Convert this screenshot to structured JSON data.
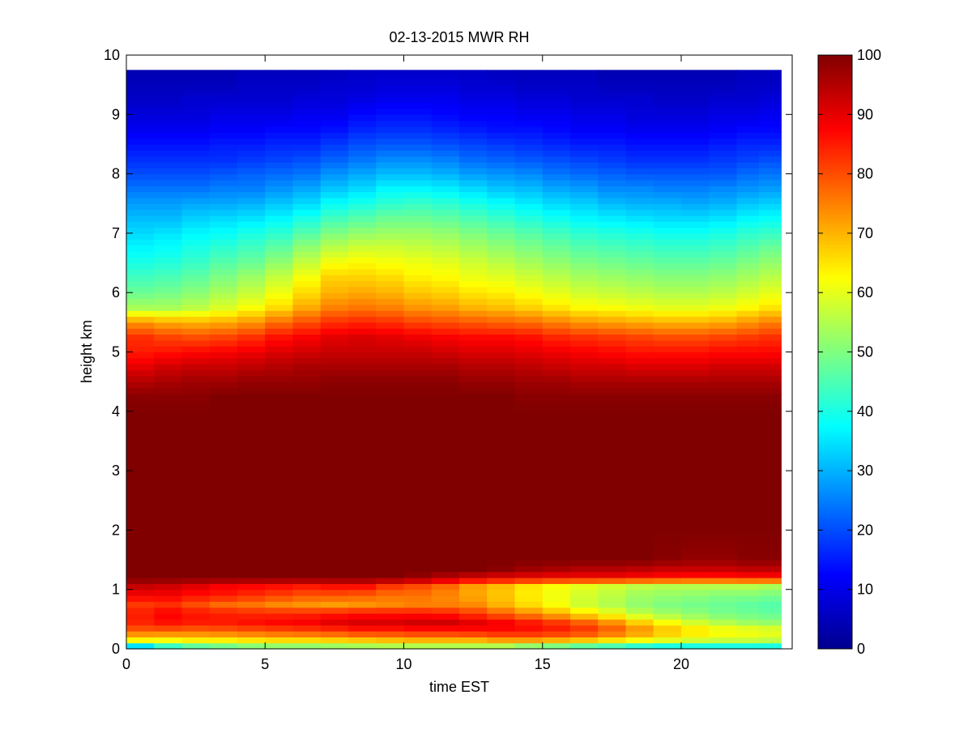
{
  "chart_data": {
    "type": "heatmap",
    "title": "02-13-2015 MWR RH",
    "xlabel": "time EST",
    "ylabel": "height km",
    "xlim": [
      0,
      23.6
    ],
    "ylim": [
      0,
      10
    ],
    "x_ticks": [
      0,
      5,
      10,
      15,
      20
    ],
    "y_ticks": [
      0,
      1,
      2,
      3,
      4,
      5,
      6,
      7,
      8,
      9,
      10
    ],
    "colorbar": {
      "range": [
        0,
        100
      ],
      "ticks": [
        0,
        10,
        20,
        30,
        40,
        50,
        60,
        70,
        80,
        90,
        100
      ],
      "colormap": "jet"
    },
    "grid": false,
    "x": [
      0.5,
      1.5,
      2.5,
      3.5,
      4.5,
      5.5,
      6.5,
      7.5,
      8.5,
      9.5,
      10.5,
      11.5,
      12.5,
      13.5,
      14.5,
      15.5,
      16.5,
      17.5,
      18.5,
      19.5,
      20.5,
      21.5,
      22.5,
      23.1
    ],
    "profile_heights": [
      0.05,
      0.15,
      0.3,
      0.45,
      0.6,
      0.75,
      0.9,
      1.05,
      1.2,
      1.35,
      1.5,
      2.0,
      2.5,
      3.0,
      3.5,
      4.0,
      4.25,
      4.5,
      4.75,
      5.0,
      5.25,
      5.5,
      5.75,
      6.0,
      6.25,
      6.5,
      6.75,
      7.0,
      7.25,
      7.5,
      7.75,
      8.0,
      8.25,
      8.5,
      8.75,
      9.0,
      9.25,
      9.5,
      9.75
    ],
    "rh_profiles": [
      [
        35,
        63,
        78,
        84,
        85,
        82,
        88,
        93,
        100,
        100,
        100,
        100,
        100,
        100,
        100,
        100,
        99,
        95,
        90,
        85,
        83,
        73,
        54,
        48,
        44,
        40,
        37,
        34,
        31,
        28,
        24,
        20,
        17,
        14,
        11,
        9,
        7,
        6,
        5
      ],
      [
        43,
        62,
        78,
        86,
        88,
        83,
        88,
        92,
        100,
        100,
        100,
        100,
        100,
        100,
        100,
        100,
        99,
        96,
        92,
        86,
        81,
        71,
        54,
        49,
        45,
        41,
        38,
        35,
        31,
        28,
        24,
        20,
        17,
        14,
        11,
        9,
        7,
        6,
        5
      ],
      [
        47,
        64,
        77,
        85,
        86,
        80,
        86,
        90,
        100,
        100,
        100,
        100,
        100,
        100,
        100,
        100,
        99,
        97,
        93,
        87,
        80,
        70,
        56,
        51,
        47,
        43,
        40,
        37,
        33,
        29,
        24,
        20,
        17,
        14,
        11,
        9,
        8,
        6,
        5
      ],
      [
        49,
        64,
        78,
        85,
        85,
        77,
        85,
        88,
        100,
        100,
        100,
        100,
        100,
        100,
        100,
        100,
        100,
        97,
        93,
        88,
        81,
        71,
        59,
        54,
        50,
        46,
        42,
        38,
        34,
        29,
        25,
        21,
        17,
        15,
        12,
        10,
        8,
        6,
        5
      ],
      [
        51,
        65,
        79,
        86,
        84,
        76,
        83,
        87,
        100,
        100,
        100,
        100,
        100,
        100,
        100,
        100,
        100,
        98,
        94,
        89,
        83,
        73,
        62,
        57,
        53,
        48,
        44,
        40,
        35,
        30,
        25,
        22,
        18,
        15,
        12,
        10,
        8,
        7,
        6
      ],
      [
        52,
        66,
        80,
        87,
        84,
        74,
        81,
        86,
        100,
        100,
        100,
        100,
        100,
        100,
        100,
        100,
        100,
        98,
        95,
        91,
        86,
        77,
        66,
        61,
        57,
        52,
        47,
        42,
        37,
        32,
        27,
        23,
        19,
        16,
        13,
        10,
        8,
        7,
        6
      ],
      [
        52,
        66,
        81,
        88,
        84,
        73,
        79,
        85,
        100,
        100,
        100,
        100,
        100,
        100,
        100,
        100,
        100,
        98,
        96,
        92,
        88,
        80,
        71,
        66,
        62,
        57,
        52,
        46,
        40,
        34,
        29,
        24,
        20,
        16,
        13,
        11,
        9,
        7,
        6
      ],
      [
        53,
        67,
        82,
        90,
        85,
        72,
        79,
        86,
        100,
        100,
        100,
        100,
        100,
        100,
        100,
        100,
        100,
        99,
        96,
        93,
        90,
        83,
        75,
        70,
        67,
        62,
        56,
        50,
        44,
        38,
        32,
        27,
        22,
        18,
        14,
        11,
        9,
        8,
        6
      ],
      [
        54,
        68,
        84,
        91,
        86,
        73,
        78,
        86,
        100,
        100,
        100,
        100,
        100,
        100,
        100,
        100,
        100,
        99,
        96,
        93,
        91,
        84,
        76,
        71,
        67,
        63,
        58,
        52,
        46,
        40,
        34,
        29,
        24,
        20,
        16,
        13,
        10,
        8,
        7
      ],
      [
        55,
        69,
        84,
        91,
        86,
        74,
        76,
        82,
        100,
        100,
        100,
        100,
        100,
        100,
        100,
        100,
        100,
        99,
        96,
        93,
        90,
        83,
        75,
        70,
        66,
        62,
        58,
        53,
        48,
        42,
        37,
        31,
        26,
        21,
        17,
        14,
        11,
        9,
        7
      ],
      [
        55,
        70,
        85,
        92,
        86,
        75,
        76,
        80,
        98,
        100,
        100,
        100,
        100,
        100,
        100,
        100,
        100,
        99,
        96,
        93,
        89,
        81,
        73,
        68,
        64,
        61,
        57,
        53,
        48,
        43,
        37,
        31,
        26,
        21,
        17,
        14,
        11,
        9,
        7
      ],
      [
        55,
        70,
        85,
        92,
        85,
        75,
        74,
        77,
        95,
        100,
        100,
        100,
        100,
        100,
        100,
        100,
        100,
        99,
        96,
        92,
        88,
        80,
        72,
        67,
        63,
        60,
        56,
        52,
        47,
        42,
        36,
        30,
        25,
        20,
        16,
        13,
        11,
        9,
        7
      ],
      [
        55,
        70,
        86,
        90,
        82,
        74,
        71,
        72,
        92,
        100,
        100,
        100,
        100,
        100,
        100,
        100,
        100,
        98,
        95,
        91,
        87,
        79,
        70,
        65,
        61,
        58,
        54,
        50,
        45,
        40,
        34,
        28,
        23,
        19,
        15,
        12,
        10,
        8,
        7
      ],
      [
        55,
        72,
        87,
        88,
        78,
        70,
        68,
        69,
        90,
        99,
        100,
        100,
        100,
        100,
        100,
        100,
        100,
        98,
        95,
        91,
        87,
        78,
        69,
        64,
        60,
        56,
        52,
        48,
        43,
        38,
        32,
        27,
        22,
        18,
        14,
        12,
        10,
        8,
        6
      ],
      [
        52,
        72,
        87,
        85,
        74,
        66,
        64,
        65,
        89,
        97,
        100,
        100,
        100,
        100,
        100,
        100,
        99,
        97,
        94,
        90,
        86,
        77,
        67,
        62,
        58,
        54,
        50,
        46,
        41,
        36,
        31,
        26,
        21,
        17,
        14,
        11,
        9,
        7,
        6
      ],
      [
        50,
        70,
        86,
        82,
        70,
        62,
        61,
        62,
        88,
        96,
        100,
        100,
        100,
        100,
        100,
        100,
        99,
        97,
        93,
        89,
        84,
        75,
        65,
        60,
        56,
        52,
        48,
        44,
        39,
        34,
        29,
        24,
        20,
        16,
        13,
        11,
        9,
        7,
        6
      ],
      [
        47,
        68,
        84,
        78,
        65,
        58,
        58,
        60,
        88,
        95,
        100,
        100,
        100,
        100,
        100,
        100,
        99,
        96,
        92,
        88,
        83,
        73,
        63,
        58,
        54,
        50,
        46,
        42,
        37,
        33,
        28,
        23,
        19,
        15,
        12,
        10,
        8,
        7,
        6
      ],
      [
        45,
        65,
        80,
        73,
        61,
        55,
        56,
        58,
        88,
        95,
        100,
        100,
        100,
        100,
        100,
        100,
        99,
        96,
        92,
        87,
        82,
        72,
        62,
        57,
        53,
        49,
        45,
        41,
        36,
        31,
        26,
        22,
        18,
        15,
        12,
        10,
        8,
        6,
        5
      ],
      [
        42,
        62,
        75,
        67,
        56,
        52,
        53,
        56,
        87,
        94,
        100,
        100,
        100,
        100,
        100,
        100,
        99,
        96,
        91,
        86,
        81,
        71,
        61,
        56,
        52,
        48,
        44,
        40,
        35,
        30,
        26,
        21,
        17,
        14,
        11,
        9,
        8,
        6,
        5
      ],
      [
        40,
        60,
        70,
        62,
        53,
        50,
        52,
        55,
        86,
        93,
        99,
        100,
        100,
        100,
        100,
        100,
        99,
        96,
        91,
        86,
        80,
        70,
        60,
        55,
        51,
        47,
        43,
        39,
        34,
        30,
        25,
        21,
        17,
        14,
        11,
        9,
        7,
        6,
        5
      ],
      [
        40,
        58,
        67,
        58,
        51,
        49,
        51,
        55,
        85,
        93,
        98,
        100,
        100,
        100,
        100,
        100,
        99,
        96,
        91,
        86,
        80,
        70,
        60,
        55,
        51,
        47,
        43,
        39,
        34,
        29,
        25,
        21,
        17,
        14,
        11,
        9,
        7,
        6,
        5
      ],
      [
        40,
        57,
        64,
        55,
        49,
        48,
        50,
        55,
        85,
        93,
        98,
        100,
        100,
        100,
        100,
        100,
        99,
        96,
        92,
        87,
        81,
        71,
        61,
        56,
        52,
        48,
        44,
        40,
        35,
        30,
        26,
        21,
        18,
        15,
        12,
        10,
        8,
        6,
        5
      ],
      [
        40,
        57,
        63,
        53,
        48,
        47,
        50,
        55,
        86,
        94,
        99,
        100,
        100,
        100,
        100,
        100,
        99,
        96,
        92,
        87,
        82,
        73,
        63,
        58,
        54,
        50,
        46,
        42,
        37,
        32,
        27,
        23,
        19,
        16,
        13,
        10,
        8,
        7,
        6
      ],
      [
        40,
        56,
        62,
        52,
        47,
        46,
        49,
        54,
        86,
        94,
        99,
        100,
        100,
        100,
        100,
        100,
        99,
        96,
        92,
        87,
        83,
        75,
        65,
        60,
        56,
        52,
        48,
        43,
        38,
        33,
        28,
        24,
        20,
        16,
        13,
        11,
        9,
        7,
        6
      ]
    ]
  }
}
